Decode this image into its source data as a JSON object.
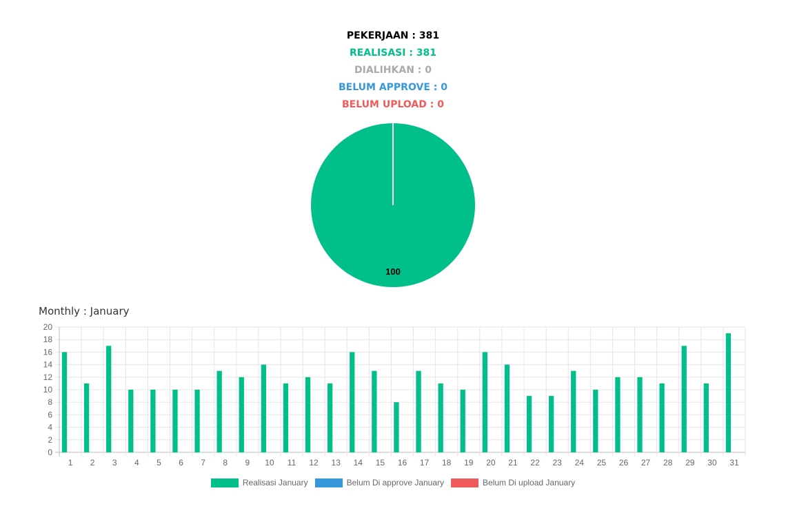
{
  "summary": {
    "pekerjaan": "PEKERJAAN : 381",
    "realisasi": "REALISASI : 381",
    "dialihkan": "DIALIHKAN : 0",
    "belum_approve": "BELUM APPROVE : 0",
    "belum_upload": "BELUM UPLOAD : 0"
  },
  "colors": {
    "realisasi": "#00bf8a",
    "dialihkan": "#aaaaaa",
    "belum_approve": "#3498db",
    "belum_upload": "#f05a5a",
    "pekerjaan": "#000000"
  },
  "monthly_title": "Monthly : January",
  "chart_data": [
    {
      "type": "pie",
      "slices": [
        {
          "value": 100,
          "color": "#00bf8a"
        },
        {
          "value": 0,
          "color": "#aaaaaa"
        }
      ],
      "labels": [
        "100"
      ]
    },
    {
      "type": "bar",
      "categories": [
        "1",
        "2",
        "3",
        "4",
        "5",
        "6",
        "7",
        "8",
        "9",
        "10",
        "11",
        "12",
        "13",
        "14",
        "15",
        "16",
        "17",
        "18",
        "19",
        "20",
        "21",
        "22",
        "23",
        "24",
        "25",
        "26",
        "27",
        "28",
        "29",
        "30",
        "31"
      ],
      "series": [
        {
          "name": "Realisasi January",
          "color": "#00bf8a",
          "values": [
            16,
            11,
            17,
            10,
            10,
            10,
            10,
            13,
            12,
            14,
            11,
            12,
            11,
            16,
            13,
            8,
            13,
            11,
            10,
            16,
            14,
            9,
            9,
            13,
            10,
            12,
            12,
            11,
            17,
            11,
            19
          ]
        },
        {
          "name": "Belum Di approve January",
          "color": "#3498db",
          "values": [
            0,
            0,
            0,
            0,
            0,
            0,
            0,
            0,
            0,
            0,
            0,
            0,
            0,
            0,
            0,
            0,
            0,
            0,
            0,
            0,
            0,
            0,
            0,
            0,
            0,
            0,
            0,
            0,
            0,
            0,
            0
          ]
        },
        {
          "name": "Belum Di upload January",
          "color": "#f05a5a",
          "values": [
            0,
            0,
            0,
            0,
            0,
            0,
            0,
            0,
            0,
            0,
            0,
            0,
            0,
            0,
            0,
            0,
            0,
            0,
            0,
            0,
            0,
            0,
            0,
            0,
            0,
            0,
            0,
            0,
            0,
            0,
            0
          ]
        }
      ],
      "yticks": [
        "0",
        "2",
        "4",
        "6",
        "8",
        "10",
        "12",
        "14",
        "16",
        "18",
        "20"
      ],
      "ylim": [
        0,
        20
      ],
      "grid": true,
      "legend": "bottom"
    }
  ]
}
